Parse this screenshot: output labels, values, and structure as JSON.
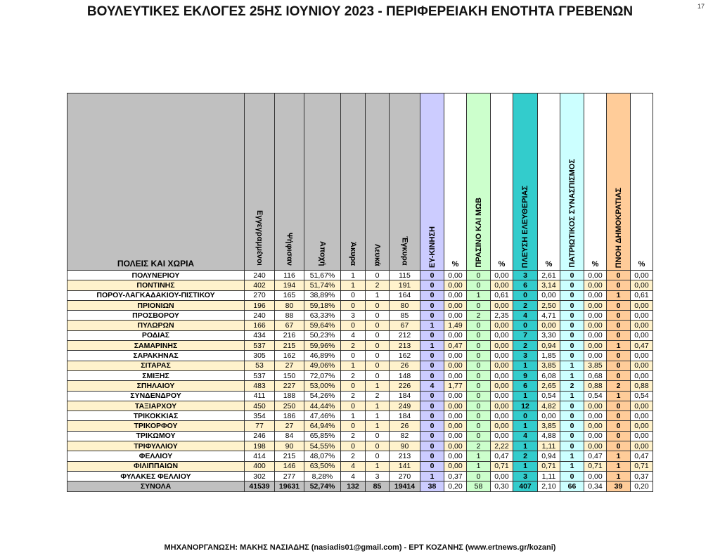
{
  "title": "ΒΟΥΛΕΥΤΙΚΕΣ ΕΚΛΟΓΕΣ 25ΗΣ ΙΟΥΝΙΟΥ 2023 - ΠΕΡΙΦΕΡΕΙΑΚΗ ΕΝΟΤΗΤΑ ΓΡΕΒΕΝΩΝ",
  "page_number": "17",
  "footer": "ΜΗΧΑΝΟΡΓΑΝΩΣΗ: ΜΑΚΗΣ ΝΑΣΙΑΔΗΣ (nasiadis01@gmail.com) - ΕΡΤ ΚΟΖΑΝΗΣ (www.ertnews.gr/kozani)",
  "table": {
    "name_header": "ΠΟΛΕΙΣ ΚΑΙ ΧΩΡΙΑ",
    "stat_headers": [
      "Εγγεγραμμένοι",
      "Ψήφισαν",
      "Αποχή",
      "Άκυρα",
      "Λευκά",
      "Έγκυρα"
    ],
    "parties": [
      {
        "name": "ΕΥ-ΚΙΝΗΣΗ",
        "color": "#ccccff"
      },
      {
        "name": "ΠΡΑΣΙΝΟ ΚΑΙ ΜΩΒ",
        "color": "#ccffcc"
      },
      {
        "name": "ΠΛΕΥΣΗ ΕΛΕΥΘΕΡΙΑΣ",
        "color": "#33cccc"
      },
      {
        "name": "ΠΑΤΡΙΩΤΙΚΟΣ ΣΥΝΑΣΠΙΣΜΟΣ",
        "color": "#ccffff"
      },
      {
        "name": "ΠΝΟΗ ΔΗΜΟΚΡΑΤΙΑΣ",
        "color": "#ffcc99"
      }
    ],
    "pct_header": "%",
    "rows": [
      {
        "name": "ΠΟΛΥΝΕΡΙΟΥ",
        "stats": [
          "240",
          "116",
          "51,67%",
          "1",
          "0",
          "115"
        ],
        "votes": [
          [
            "0",
            "0,00"
          ],
          [
            "0",
            "0,00"
          ],
          [
            "3",
            "2,61"
          ],
          [
            "0",
            "0,00"
          ],
          [
            "0",
            "0,00"
          ]
        ]
      },
      {
        "name": "ΠΟΝΤΙΝΗΣ",
        "stats": [
          "402",
          "194",
          "51,74%",
          "1",
          "2",
          "191"
        ],
        "votes": [
          [
            "0",
            "0,00"
          ],
          [
            "0",
            "0,00"
          ],
          [
            "6",
            "3,14"
          ],
          [
            "0",
            "0,00"
          ],
          [
            "0",
            "0,00"
          ]
        ]
      },
      {
        "name": "ΠΟΡΟΥ-ΛΑΓΚΑΔΑΚΙΟΥ-ΠΙΣΤΙΚΟΥ",
        "stats": [
          "270",
          "165",
          "38,89%",
          "0",
          "1",
          "164"
        ],
        "votes": [
          [
            "0",
            "0,00"
          ],
          [
            "1",
            "0,61"
          ],
          [
            "0",
            "0,00"
          ],
          [
            "0",
            "0,00"
          ],
          [
            "1",
            "0,61"
          ]
        ]
      },
      {
        "name": "ΠΡΙΟΝΙΩΝ",
        "stats": [
          "196",
          "80",
          "59,18%",
          "0",
          "0",
          "80"
        ],
        "votes": [
          [
            "0",
            "0,00"
          ],
          [
            "0",
            "0,00"
          ],
          [
            "2",
            "2,50"
          ],
          [
            "0",
            "0,00"
          ],
          [
            "0",
            "0,00"
          ]
        ]
      },
      {
        "name": "ΠΡΟΣΒΟΡΟΥ",
        "stats": [
          "240",
          "88",
          "63,33%",
          "3",
          "0",
          "85"
        ],
        "votes": [
          [
            "0",
            "0,00"
          ],
          [
            "2",
            "2,35"
          ],
          [
            "4",
            "4,71"
          ],
          [
            "0",
            "0,00"
          ],
          [
            "0",
            "0,00"
          ]
        ]
      },
      {
        "name": "ΠΥΛΩΡΩΝ",
        "stats": [
          "166",
          "67",
          "59,64%",
          "0",
          "0",
          "67"
        ],
        "votes": [
          [
            "1",
            "1,49"
          ],
          [
            "0",
            "0,00"
          ],
          [
            "0",
            "0,00"
          ],
          [
            "0",
            "0,00"
          ],
          [
            "0",
            "0,00"
          ]
        ]
      },
      {
        "name": "ΡΟΔΙΑΣ",
        "stats": [
          "434",
          "216",
          "50,23%",
          "4",
          "0",
          "212"
        ],
        "votes": [
          [
            "0",
            "0,00"
          ],
          [
            "0",
            "0,00"
          ],
          [
            "7",
            "3,30"
          ],
          [
            "0",
            "0,00"
          ],
          [
            "0",
            "0,00"
          ]
        ]
      },
      {
        "name": "ΣΑΜΑΡΙΝΗΣ",
        "stats": [
          "537",
          "215",
          "59,96%",
          "2",
          "0",
          "213"
        ],
        "votes": [
          [
            "1",
            "0,47"
          ],
          [
            "0",
            "0,00"
          ],
          [
            "2",
            "0,94"
          ],
          [
            "0",
            "0,00"
          ],
          [
            "1",
            "0,47"
          ]
        ]
      },
      {
        "name": "ΣΑΡΑΚΗΝΑΣ",
        "stats": [
          "305",
          "162",
          "46,89%",
          "0",
          "0",
          "162"
        ],
        "votes": [
          [
            "0",
            "0,00"
          ],
          [
            "0",
            "0,00"
          ],
          [
            "3",
            "1,85"
          ],
          [
            "0",
            "0,00"
          ],
          [
            "0",
            "0,00"
          ]
        ]
      },
      {
        "name": "ΣΙΤΑΡΑΣ",
        "stats": [
          "53",
          "27",
          "49,06%",
          "1",
          "0",
          "26"
        ],
        "votes": [
          [
            "0",
            "0,00"
          ],
          [
            "0",
            "0,00"
          ],
          [
            "1",
            "3,85"
          ],
          [
            "1",
            "3,85"
          ],
          [
            "0",
            "0,00"
          ]
        ]
      },
      {
        "name": "ΣΜΙΞΗΣ",
        "stats": [
          "537",
          "150",
          "72,07%",
          "2",
          "0",
          "148"
        ],
        "votes": [
          [
            "0",
            "0,00"
          ],
          [
            "0",
            "0,00"
          ],
          [
            "9",
            "6,08"
          ],
          [
            "1",
            "0,68"
          ],
          [
            "0",
            "0,00"
          ]
        ]
      },
      {
        "name": "ΣΠΗΛΑΙΟΥ",
        "stats": [
          "483",
          "227",
          "53,00%",
          "0",
          "1",
          "226"
        ],
        "votes": [
          [
            "4",
            "1,77"
          ],
          [
            "0",
            "0,00"
          ],
          [
            "6",
            "2,65"
          ],
          [
            "2",
            "0,88"
          ],
          [
            "2",
            "0,88"
          ]
        ]
      },
      {
        "name": "ΣΥΝΔΕΝΔΡΟΥ",
        "stats": [
          "411",
          "188",
          "54,26%",
          "2",
          "2",
          "184"
        ],
        "votes": [
          [
            "0",
            "0,00"
          ],
          [
            "0",
            "0,00"
          ],
          [
            "1",
            "0,54"
          ],
          [
            "1",
            "0,54"
          ],
          [
            "1",
            "0,54"
          ]
        ]
      },
      {
        "name": "ΤΑΞΙΑΡΧΟΥ",
        "stats": [
          "450",
          "250",
          "44,44%",
          "0",
          "1",
          "249"
        ],
        "votes": [
          [
            "0",
            "0,00"
          ],
          [
            "0",
            "0,00"
          ],
          [
            "12",
            "4,82"
          ],
          [
            "0",
            "0,00"
          ],
          [
            "0",
            "0,00"
          ]
        ]
      },
      {
        "name": "ΤΡΙΚΟΚΚΙΑΣ",
        "stats": [
          "354",
          "186",
          "47,46%",
          "1",
          "1",
          "184"
        ],
        "votes": [
          [
            "0",
            "0,00"
          ],
          [
            "0",
            "0,00"
          ],
          [
            "0",
            "0,00"
          ],
          [
            "0",
            "0,00"
          ],
          [
            "0",
            "0,00"
          ]
        ]
      },
      {
        "name": "ΤΡΙΚΟΡΦΟΥ",
        "stats": [
          "77",
          "27",
          "64,94%",
          "0",
          "1",
          "26"
        ],
        "votes": [
          [
            "0",
            "0,00"
          ],
          [
            "0",
            "0,00"
          ],
          [
            "1",
            "3,85"
          ],
          [
            "0",
            "0,00"
          ],
          [
            "0",
            "0,00"
          ]
        ]
      },
      {
        "name": "ΤΡΙΚΩΜΟΥ",
        "stats": [
          "246",
          "84",
          "65,85%",
          "2",
          "0",
          "82"
        ],
        "votes": [
          [
            "0",
            "0,00"
          ],
          [
            "0",
            "0,00"
          ],
          [
            "4",
            "4,88"
          ],
          [
            "0",
            "0,00"
          ],
          [
            "0",
            "0,00"
          ]
        ]
      },
      {
        "name": "ΤΡΙΦΥΛΛΙΟΥ",
        "stats": [
          "198",
          "90",
          "54,55%",
          "0",
          "0",
          "90"
        ],
        "votes": [
          [
            "0",
            "0,00"
          ],
          [
            "2",
            "2,22"
          ],
          [
            "1",
            "1,11"
          ],
          [
            "0",
            "0,00"
          ],
          [
            "0",
            "0,00"
          ]
        ]
      },
      {
        "name": "ΦΕΛΛΙΟΥ",
        "stats": [
          "414",
          "215",
          "48,07%",
          "2",
          "0",
          "213"
        ],
        "votes": [
          [
            "0",
            "0,00"
          ],
          [
            "1",
            "0,47"
          ],
          [
            "2",
            "0,94"
          ],
          [
            "1",
            "0,47"
          ],
          [
            "1",
            "0,47"
          ]
        ]
      },
      {
        "name": "ΦΙΛΙΠΠΑΙΩΝ",
        "stats": [
          "400",
          "146",
          "63,50%",
          "4",
          "1",
          "141"
        ],
        "votes": [
          [
            "0",
            "0,00"
          ],
          [
            "1",
            "0,71"
          ],
          [
            "1",
            "0,71"
          ],
          [
            "1",
            "0,71"
          ],
          [
            "1",
            "0,71"
          ]
        ]
      },
      {
        "name": "ΦΥΛΑΚΕΣ ΦΕΛΛΙΟΥ",
        "stats": [
          "302",
          "277",
          "8,28%",
          "4",
          "3",
          "270"
        ],
        "votes": [
          [
            "1",
            "0,37"
          ],
          [
            "0",
            "0,00"
          ],
          [
            "3",
            "1,11"
          ],
          [
            "0",
            "0,00"
          ],
          [
            "1",
            "0,37"
          ]
        ]
      }
    ],
    "total": {
      "name": "ΣΥΝΟΛΑ",
      "stats": [
        "41539",
        "19631",
        "52,74%",
        "132",
        "85",
        "19414"
      ],
      "votes": [
        [
          "38",
          "0,20"
        ],
        [
          "58",
          "0,30"
        ],
        [
          "407",
          "2,10"
        ],
        [
          "66",
          "0,34"
        ],
        [
          "39",
          "0,20"
        ]
      ]
    }
  }
}
